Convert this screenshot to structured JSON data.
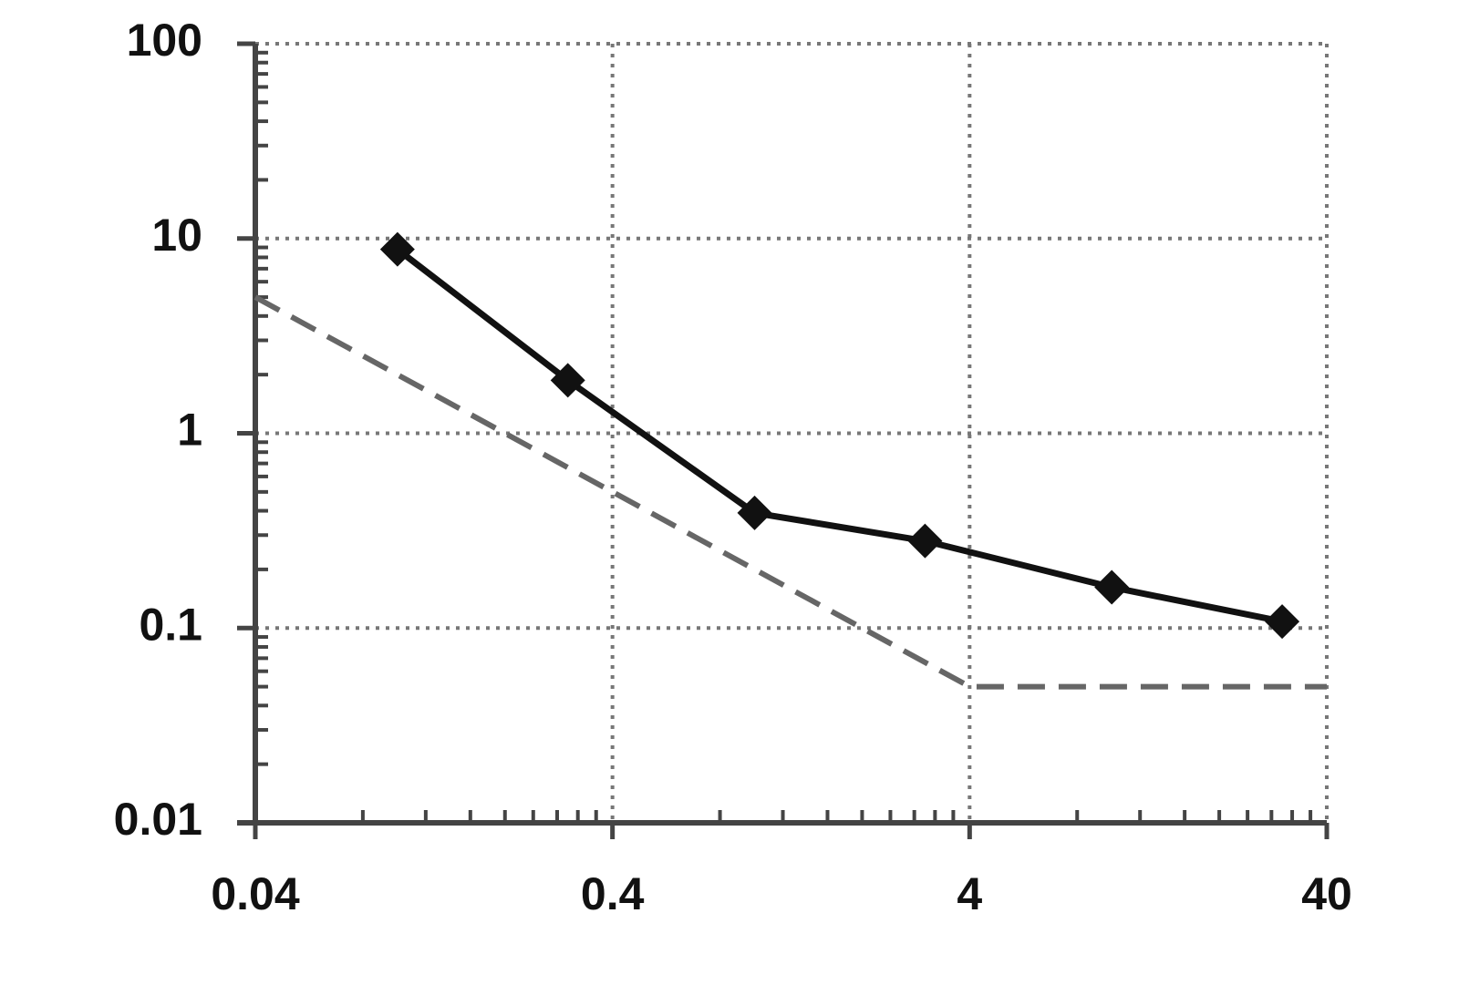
{
  "chart_data": {
    "type": "line",
    "xlog": true,
    "ylog": true,
    "grid": true,
    "xlim": [
      0.04,
      40
    ],
    "xticks": [
      0.04,
      0.4,
      4,
      40
    ],
    "ylim": [
      0.01,
      100
    ],
    "yticks": [
      0.01,
      0.1,
      1,
      10,
      100
    ],
    "series": [
      {
        "color": "#111111",
        "line_style": "solid",
        "marker": "diamond",
        "x": [
          0.1,
          0.3,
          1,
          3,
          10,
          30
        ],
        "values": [
          8.8,
          1.87,
          0.39,
          0.28,
          0.162,
          0.108
        ]
      },
      {
        "color": "#666666",
        "line_style": "dashed",
        "marker": "none",
        "x": [
          0.04,
          4,
          40
        ],
        "values": [
          5,
          0.05,
          0.05
        ]
      }
    ]
  }
}
